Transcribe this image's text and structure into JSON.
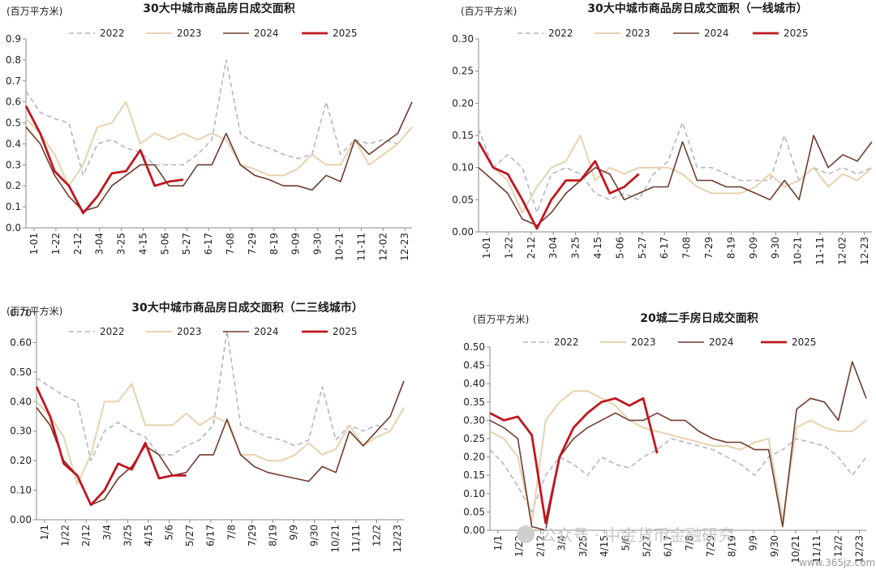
{
  "colors": {
    "y2022": "#b4b4c8",
    "y2023": "#e8d2b0",
    "y2024": "#6e3b2e",
    "y2025": "#c0171f",
    "axis": "#888888"
  },
  "watermark": {
    "text": "公众号 · 中金货币金融研究",
    "site": "www.365jz.com",
    "icon": "wechat-icon"
  },
  "chart_data": [
    {
      "type": "line",
      "title": "30大中城市商品房日成交面积",
      "unit": "(百万平方米)",
      "ylim": [
        0,
        0.9
      ],
      "yticks": [
        "0.0",
        "0.1",
        "0.2",
        "0.3",
        "0.4",
        "0.5",
        "0.6",
        "0.7",
        "0.8",
        "0.9"
      ],
      "xticks": [
        "1-01",
        "1-22",
        "2-12",
        "3-04",
        "3-25",
        "4-15",
        "5-06",
        "5-27",
        "6-17",
        "7-08",
        "7-29",
        "8-19",
        "9-09",
        "9-30",
        "10-21",
        "11-11",
        "12-02",
        "12-23"
      ],
      "xtick_rotation": "vertical",
      "legend": [
        "2022",
        "2023",
        "2024",
        "2025"
      ],
      "series": [
        {
          "name": "2022",
          "values": [
            0.65,
            0.55,
            0.52,
            0.5,
            0.25,
            0.4,
            0.42,
            0.38,
            0.36,
            0.3,
            0.3,
            0.3,
            0.35,
            0.42,
            0.8,
            0.45,
            0.4,
            0.38,
            0.35,
            0.33,
            0.35,
            0.6,
            0.35,
            0.42,
            0.4,
            0.42,
            0.4,
            0.48
          ]
        },
        {
          "name": "2023",
          "values": [
            0.52,
            0.45,
            0.35,
            0.2,
            0.3,
            0.48,
            0.5,
            0.6,
            0.4,
            0.45,
            0.42,
            0.45,
            0.42,
            0.45,
            0.42,
            0.3,
            0.28,
            0.25,
            0.25,
            0.28,
            0.35,
            0.3,
            0.3,
            0.42,
            0.3,
            0.35,
            0.4,
            0.48
          ]
        },
        {
          "name": "2024",
          "values": [
            0.48,
            0.4,
            0.25,
            0.15,
            0.08,
            0.1,
            0.2,
            0.25,
            0.3,
            0.3,
            0.2,
            0.2,
            0.3,
            0.3,
            0.45,
            0.3,
            0.25,
            0.23,
            0.2,
            0.2,
            0.18,
            0.25,
            0.22,
            0.42,
            0.35,
            0.4,
            0.45,
            0.6
          ]
        },
        {
          "name": "2025",
          "values": [
            0.58,
            0.45,
            0.27,
            0.2,
            0.07,
            0.15,
            0.26,
            0.27,
            0.37,
            0.2,
            0.22,
            0.23
          ]
        }
      ]
    },
    {
      "type": "line",
      "title": "30大中城市商品房日成交面积（一线城市）",
      "unit": "(百万平方米)",
      "ylim": [
        0,
        0.3
      ],
      "yticks": [
        "0.00",
        "0.05",
        "0.10",
        "0.15",
        "0.20",
        "0.25",
        "0.30"
      ],
      "xticks": [
        "1-01",
        "1-22",
        "2-12",
        "3-04",
        "3-25",
        "4-15",
        "5-06",
        "5-27",
        "6-17",
        "7-08",
        "7-29",
        "8-19",
        "9-09",
        "9-30",
        "10-21",
        "11-11",
        "12-02",
        "12-23"
      ],
      "xtick_rotation": "vertical",
      "legend": [
        "2022",
        "2023",
        "2024",
        "2025"
      ],
      "series": [
        {
          "name": "2022",
          "values": [
            0.16,
            0.1,
            0.12,
            0.1,
            0.03,
            0.09,
            0.1,
            0.09,
            0.06,
            0.05,
            0.06,
            0.05,
            0.09,
            0.11,
            0.17,
            0.1,
            0.1,
            0.09,
            0.08,
            0.08,
            0.08,
            0.15,
            0.08,
            0.1,
            0.09,
            0.1,
            0.09,
            0.1
          ]
        },
        {
          "name": "2023",
          "values": [
            0.14,
            0.1,
            0.08,
            0.03,
            0.07,
            0.1,
            0.11,
            0.15,
            0.08,
            0.1,
            0.09,
            0.1,
            0.1,
            0.1,
            0.09,
            0.07,
            0.06,
            0.06,
            0.06,
            0.07,
            0.09,
            0.07,
            0.08,
            0.1,
            0.07,
            0.09,
            0.08,
            0.1
          ]
        },
        {
          "name": "2024",
          "values": [
            0.1,
            0.08,
            0.06,
            0.02,
            0.01,
            0.03,
            0.06,
            0.08,
            0.1,
            0.09,
            0.05,
            0.06,
            0.07,
            0.07,
            0.14,
            0.08,
            0.08,
            0.07,
            0.07,
            0.06,
            0.05,
            0.08,
            0.05,
            0.15,
            0.1,
            0.12,
            0.11,
            0.14
          ]
        },
        {
          "name": "2025",
          "values": [
            0.14,
            0.1,
            0.09,
            0.05,
            0.005,
            0.05,
            0.08,
            0.08,
            0.11,
            0.06,
            0.07,
            0.09
          ]
        }
      ]
    },
    {
      "type": "line",
      "title": "30大中城市商品房日成交面积（二三线城市）",
      "unit": "(百万平方米)",
      "ylim": [
        0,
        0.7
      ],
      "yticks": [
        "0.00",
        "0.10",
        "0.20",
        "0.30",
        "0.40",
        "0.50",
        "0.60",
        "0.70"
      ],
      "xticks": [
        "1/1",
        "1/22",
        "2/12",
        "3/4",
        "3/25",
        "4/15",
        "5/6",
        "5/27",
        "6/17",
        "7/8",
        "7/29",
        "8/19",
        "9/9",
        "9/30",
        "10/21",
        "11/11",
        "12/2",
        "12/23"
      ],
      "xtick_rotation": "vertical",
      "legend": [
        "2022",
        "2023",
        "2024",
        "2025"
      ],
      "series": [
        {
          "name": "2022",
          "values": [
            0.48,
            0.45,
            0.42,
            0.4,
            0.2,
            0.3,
            0.33,
            0.3,
            0.28,
            0.22,
            0.22,
            0.25,
            0.27,
            0.32,
            0.64,
            0.32,
            0.3,
            0.28,
            0.27,
            0.25,
            0.27,
            0.45,
            0.27,
            0.32,
            0.3,
            0.32,
            0.3,
            0.38
          ]
        },
        {
          "name": "2023",
          "values": [
            0.4,
            0.35,
            0.28,
            0.12,
            0.22,
            0.4,
            0.4,
            0.46,
            0.32,
            0.32,
            0.32,
            0.36,
            0.32,
            0.35,
            0.33,
            0.22,
            0.22,
            0.2,
            0.2,
            0.22,
            0.26,
            0.22,
            0.24,
            0.32,
            0.25,
            0.28,
            0.3,
            0.38
          ]
        },
        {
          "name": "2024",
          "values": [
            0.38,
            0.32,
            0.2,
            0.15,
            0.05,
            0.07,
            0.14,
            0.18,
            0.25,
            0.22,
            0.15,
            0.16,
            0.22,
            0.22,
            0.34,
            0.22,
            0.18,
            0.16,
            0.15,
            0.14,
            0.13,
            0.18,
            0.16,
            0.3,
            0.25,
            0.3,
            0.35,
            0.47
          ]
        },
        {
          "name": "2025",
          "values": [
            0.45,
            0.35,
            0.19,
            0.15,
            0.05,
            0.1,
            0.19,
            0.17,
            0.26,
            0.14,
            0.15,
            0.15
          ]
        }
      ]
    },
    {
      "type": "line",
      "title": "20城二手房日成交面积",
      "unit": "(百万平方米)",
      "ylim": [
        0,
        0.5
      ],
      "yticks": [
        "0.00",
        "0.05",
        "0.10",
        "0.15",
        "0.20",
        "0.25",
        "0.30",
        "0.35",
        "0.40",
        "0.45",
        "0.50"
      ],
      "xticks": [
        "1/1",
        "1/22",
        "2/12",
        "3/4",
        "3/25",
        "4/15",
        "5/6",
        "5/27",
        "6/17",
        "7/8",
        "7/29",
        "8/19",
        "9/9",
        "9/30",
        "10/21",
        "11/11",
        "12/2",
        "12/23"
      ],
      "xtick_rotation": "vertical",
      "legend": [
        "2022",
        "2023",
        "2024",
        "2025"
      ],
      "series": [
        {
          "name": "2022",
          "values": [
            0.22,
            0.18,
            0.12,
            0.05,
            0.15,
            0.2,
            0.18,
            0.15,
            0.2,
            0.18,
            0.17,
            0.2,
            0.22,
            0.25,
            0.24,
            0.23,
            0.22,
            0.2,
            0.18,
            0.15,
            0.2,
            0.22,
            0.25,
            0.24,
            0.23,
            0.2,
            0.15,
            0.2
          ]
        },
        {
          "name": "2023",
          "values": [
            0.27,
            0.25,
            0.2,
            0.02,
            0.3,
            0.35,
            0.38,
            0.38,
            0.36,
            0.34,
            0.3,
            0.28,
            0.27,
            0.26,
            0.25,
            0.24,
            0.23,
            0.23,
            0.22,
            0.24,
            0.25,
            0.03,
            0.28,
            0.3,
            0.28,
            0.27,
            0.27,
            0.3
          ]
        },
        {
          "name": "2024",
          "values": [
            0.3,
            0.28,
            0.25,
            0.01,
            0.0,
            0.2,
            0.25,
            0.28,
            0.3,
            0.32,
            0.3,
            0.3,
            0.32,
            0.3,
            0.3,
            0.27,
            0.25,
            0.24,
            0.24,
            0.22,
            0.22,
            0.01,
            0.33,
            0.36,
            0.35,
            0.3,
            0.46,
            0.36
          ]
        },
        {
          "name": "2025",
          "values": [
            0.32,
            0.3,
            0.31,
            0.26,
            0.02,
            0.2,
            0.28,
            0.32,
            0.35,
            0.36,
            0.34,
            0.36,
            0.21
          ]
        }
      ]
    }
  ]
}
